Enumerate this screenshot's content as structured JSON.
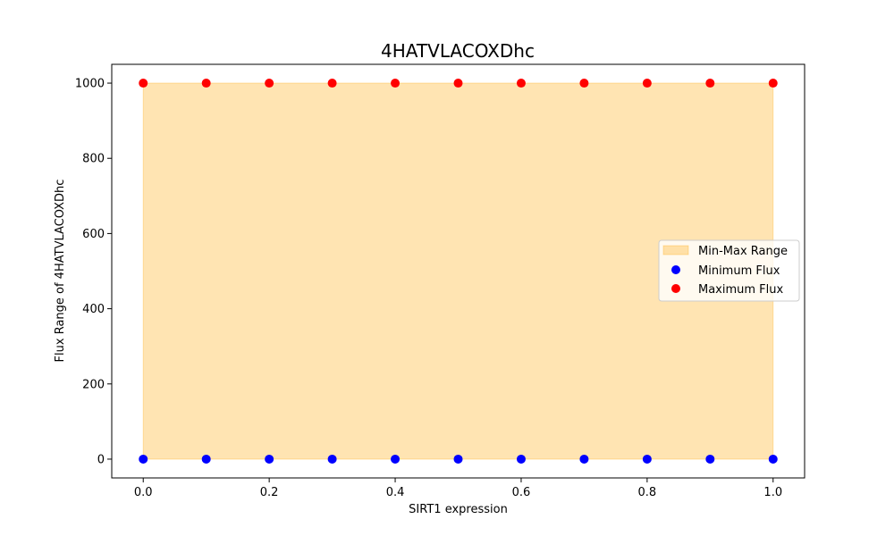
{
  "chart_data": {
    "type": "scatter",
    "title": "4HATVLACOXDhc",
    "xlabel": "SIRT1 expression",
    "ylabel": "Flux Range of 4HATVLACOXDhc",
    "xlim": [
      -0.05,
      1.05
    ],
    "ylim": [
      -50,
      1050
    ],
    "x_ticks": [
      0.0,
      0.2,
      0.4,
      0.6,
      0.8,
      1.0
    ],
    "x_tick_labels": [
      "0.0",
      "0.2",
      "0.4",
      "0.6",
      "0.8",
      "1.0"
    ],
    "y_ticks": [
      0,
      200,
      400,
      600,
      800,
      1000
    ],
    "y_tick_labels": [
      "0",
      "200",
      "400",
      "600",
      "800",
      "1000"
    ],
    "x": [
      0.0,
      0.1,
      0.2,
      0.3,
      0.4,
      0.5,
      0.6,
      0.7,
      0.8,
      0.9,
      1.0
    ],
    "series": [
      {
        "name": "Minimum Flux",
        "type": "scatter",
        "color": "#0000ff",
        "values": [
          0,
          0,
          0,
          0,
          0,
          0,
          0,
          0,
          0,
          0,
          0
        ]
      },
      {
        "name": "Maximum Flux",
        "type": "scatter",
        "color": "#ff0000",
        "values": [
          1000,
          1000,
          1000,
          1000,
          1000,
          1000,
          1000,
          1000,
          1000,
          1000,
          1000
        ]
      }
    ],
    "range_fill": {
      "name": "Min-Max Range",
      "color": "#ffa500",
      "opacity": 0.3
    },
    "legend": {
      "placement": "center-right",
      "entries": [
        "Min-Max Range",
        "Minimum Flux",
        "Maximum Flux"
      ]
    },
    "grid": false
  }
}
